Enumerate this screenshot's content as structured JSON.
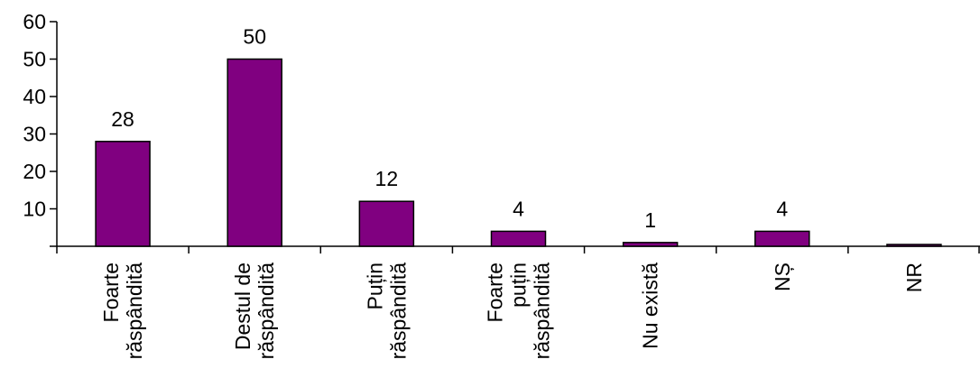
{
  "chart_data": {
    "type": "bar",
    "categories": [
      [
        "Foarte",
        "răspândită"
      ],
      [
        "Destul de",
        "răspândită"
      ],
      [
        "Puțin",
        "răspândită"
      ],
      [
        "Foarte",
        "puțin",
        "răspândită"
      ],
      [
        "Nu există"
      ],
      [
        "NȘ"
      ],
      [
        "NR"
      ]
    ],
    "values": [
      28,
      50,
      12,
      4,
      1,
      4,
      0.4
    ],
    "data_labels": [
      "28",
      "50",
      "12",
      "4",
      "1",
      "4",
      ""
    ],
    "y_ticks": [
      10,
      20,
      30,
      40,
      50,
      60
    ],
    "ylim": [
      0,
      60
    ],
    "grid": false,
    "legend": "none",
    "colors": {
      "bar_fill": "#800080",
      "bar_stroke": "#000000",
      "axis": "#000000"
    }
  }
}
